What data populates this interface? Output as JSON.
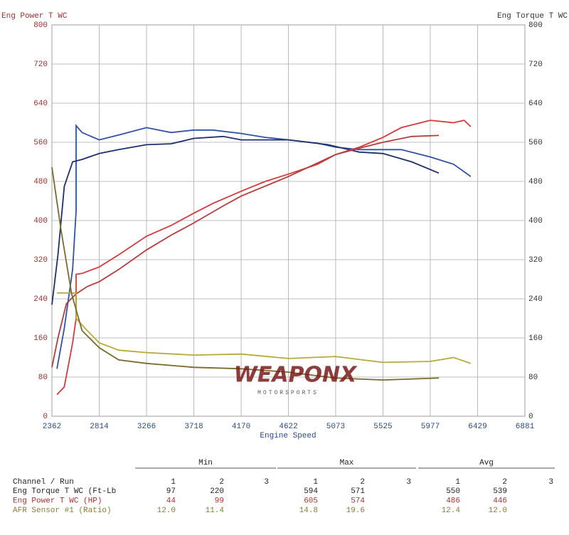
{
  "chart_data": {
    "type": "line",
    "y_label": "Eng Power T WC",
    "y2_label": "Eng Torque T WC",
    "x_label": "Engine Speed",
    "xlim": [
      2362,
      6881
    ],
    "xticks": [
      2362,
      2814,
      3266,
      3718,
      4170,
      4622,
      5073,
      5525,
      5977,
      6429,
      6881
    ],
    "ylim": [
      0,
      800
    ],
    "yticks": [
      0,
      80,
      160,
      240,
      320,
      400,
      480,
      560,
      640,
      720,
      800
    ],
    "y2lim": [
      0,
      800
    ],
    "y2ticks": [
      0,
      80,
      160,
      240,
      320,
      400,
      480,
      560,
      640,
      720,
      800
    ],
    "grid": true,
    "series": [
      {
        "color": "#2f52a6",
        "axis": "y2",
        "x": [
          2410,
          2480,
          2560,
          2593,
          2593,
          2650,
          2814,
          3000,
          3266,
          3500,
          3718,
          3900,
          4170,
          4400,
          4622,
          4900,
          5073,
          5300,
          5525,
          5700,
          5977,
          6200,
          6364
        ],
        "values": [
          97,
          180,
          300,
          420,
          594,
          580,
          565,
          575,
          590,
          580,
          585,
          585,
          578,
          570,
          565,
          558,
          550,
          545,
          545,
          545,
          530,
          515,
          490
        ]
      },
      {
        "color": "#1f2f6e",
        "axis": "y2",
        "x": [
          2362,
          2420,
          2480,
          2560,
          2650,
          2814,
          3000,
          3266,
          3500,
          3718,
          4000,
          4170,
          4622,
          5000,
          5300,
          5525,
          5800,
          6059
        ],
        "values": [
          228,
          330,
          470,
          520,
          525,
          537,
          545,
          555,
          557,
          568,
          572,
          565,
          565,
          555,
          540,
          537,
          520,
          497
        ]
      },
      {
        "color": "#d63a3a",
        "x": [
          2410,
          2480,
          2560,
          2593,
          2593,
          2650,
          2814,
          3000,
          3266,
          3500,
          3718,
          3900,
          4170,
          4400,
          4622,
          4900,
          5073,
          5300,
          5525,
          5700,
          5977,
          6200,
          6300,
          6364
        ],
        "values": [
          44,
          60,
          150,
          200,
          290,
          292,
          305,
          330,
          368,
          390,
          415,
          435,
          460,
          480,
          495,
          515,
          535,
          550,
          570,
          590,
          605,
          600,
          605,
          592
        ]
      },
      {
        "color": "#b53c3c",
        "x": [
          2362,
          2420,
          2500,
          2593,
          2700,
          2814,
          3000,
          3266,
          3500,
          3718,
          4000,
          4170,
          4622,
          5073,
          5300,
          5525,
          5800,
          6059
        ],
        "values": [
          100,
          160,
          230,
          250,
          265,
          275,
          300,
          340,
          370,
          395,
          430,
          450,
          490,
          535,
          548,
          560,
          572,
          574
        ]
      },
      {
        "color": "#b8aa3a",
        "x": [
          2410,
          2593,
          2593,
          2700,
          2814,
          3000,
          3266,
          3718,
          4170,
          4622,
          5073,
          5525,
          5977,
          6200,
          6364
        ],
        "values": [
          252,
          252,
          200,
          175,
          150,
          135,
          130,
          125,
          127,
          118,
          122,
          110,
          112,
          120,
          108
        ]
      },
      {
        "color": "#7a6b2a",
        "x": [
          2362,
          2450,
          2550,
          2650,
          2814,
          3000,
          3266,
          3718,
          4170,
          4622,
          5073,
          5525,
          6059
        ],
        "values": [
          509,
          380,
          250,
          175,
          140,
          115,
          108,
          100,
          97,
          90,
          78,
          74,
          78
        ]
      }
    ]
  },
  "watermark": {
    "text": "WEAPONX",
    "tagline": "MOTORSPORTS"
  },
  "stats_table": {
    "header": "Channel / Run",
    "groups": [
      "Min",
      "Max",
      "Avg"
    ],
    "runs": [
      "1",
      "2",
      "3"
    ],
    "rows": [
      {
        "label": "Eng Torque T WC (Ft-Lb",
        "color": "#222222",
        "values": [
          [
            "97",
            "220"
          ],
          [
            "594",
            "571"
          ],
          [
            "550",
            "539"
          ]
        ]
      },
      {
        "label": "Eng Power T WC (HP)",
        "color": "#b03030",
        "values": [
          [
            "44",
            "99"
          ],
          [
            "605",
            "574"
          ],
          [
            "486",
            "446"
          ]
        ]
      },
      {
        "label": "AFR Sensor #1 (Ratio)",
        "color": "#8a7e30",
        "values": [
          [
            "12.0",
            "11.4"
          ],
          [
            "14.8",
            "19.6"
          ],
          [
            "12.4",
            "12.0"
          ]
        ]
      }
    ]
  }
}
